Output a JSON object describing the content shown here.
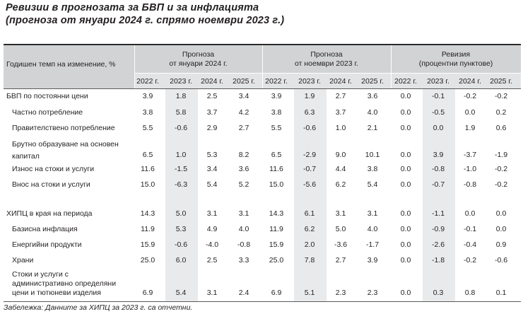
{
  "title": {
    "line1": "Ревизии в прогнозата за БВП и за инфлацията",
    "line2": "(прогноза от януари 2024 г. спрямо ноември 2023 г.)"
  },
  "header": {
    "row_label": "Годишен темп на изменение, %",
    "sections": [
      {
        "line1": "Прогноза",
        "line2": "от януари 2024 г."
      },
      {
        "line1": "Прогноза",
        "line2": "от ноември 2023 г."
      },
      {
        "line1": "Ревизия",
        "line2": "(процентни пунктове)"
      }
    ],
    "years": [
      "2022 г.",
      "2023 г.",
      "2024 г.",
      "2025 г.",
      "2022 г.",
      "2023 г.",
      "2024 г.",
      "2025 г.",
      "2022 г.",
      "2023 г.",
      "2024 г.",
      "2025 г."
    ]
  },
  "rows": [
    {
      "lines": [
        "БВП по постоянни цени"
      ],
      "values": [
        "3.9",
        "1.8",
        "2.5",
        "3.4",
        "3.9",
        "1.9",
        "2.7",
        "3.6",
        "0.0",
        "-0.1",
        "-0.2",
        "-0.2"
      ]
    },
    {
      "lines": [
        "Частно потребление"
      ],
      "values": [
        "3.8",
        "5.8",
        "3.7",
        "4.2",
        "3.8",
        "6.3",
        "3.7",
        "4.0",
        "0.0",
        "-0.5",
        "0.0",
        "0.2"
      ]
    },
    {
      "lines": [
        "Правителствено потребление"
      ],
      "values": [
        "5.5",
        "-0.6",
        "2.9",
        "2.7",
        "5.5",
        "-0.6",
        "1.0",
        "2.1",
        "0.0",
        "0.0",
        "1.9",
        "0.6"
      ]
    },
    {
      "lines": [
        "Брутно образуване на основен",
        "капитал"
      ],
      "values": [
        "6.5",
        "1.0",
        "5.3",
        "8.2",
        "6.5",
        "-2.9",
        "9.0",
        "10.1",
        "0.0",
        "3.9",
        "-3.7",
        "-1.9"
      ]
    },
    {
      "lines": [
        "Износ на стоки и услуги"
      ],
      "values": [
        "11.6",
        "-1.5",
        "3.4",
        "3.6",
        "11.6",
        "-0.7",
        "4.4",
        "3.8",
        "0.0",
        "-0.8",
        "-1.0",
        "-0.2"
      ]
    },
    {
      "lines": [
        "Внос на стоки и услуги"
      ],
      "values": [
        "15.0",
        "-6.3",
        "5.4",
        "5.2",
        "15.0",
        "-5.6",
        "6.2",
        "5.4",
        "0.0",
        "-0.7",
        "-0.8",
        "-0.2"
      ]
    },
    {
      "lines": [
        "ХИПЦ в края на периода"
      ],
      "values": [
        "14.3",
        "5.0",
        "3.1",
        "3.1",
        "14.3",
        "6.1",
        "3.1",
        "3.1",
        "0.0",
        "-1.1",
        "0.0",
        "0.0"
      ]
    },
    {
      "lines": [
        "Базисна инфлация"
      ],
      "values": [
        "11.9",
        "5.3",
        "4.9",
        "4.0",
        "11.9",
        "6.2",
        "5.0",
        "4.0",
        "0.0",
        "-0.9",
        "-0.1",
        "0.0"
      ]
    },
    {
      "lines": [
        "Енергийни продукти"
      ],
      "values": [
        "15.9",
        "-0.6",
        "-4.0",
        "-0.8",
        "15.9",
        "2.0",
        "-3.6",
        "-1.7",
        "0.0",
        "-2.6",
        "-0.4",
        "0.9"
      ]
    },
    {
      "lines": [
        "Храни"
      ],
      "values": [
        "25.0",
        "6.0",
        "2.5",
        "3.3",
        "25.0",
        "7.8",
        "2.7",
        "3.9",
        "0.0",
        "-1.8",
        "-0.2",
        "-0.6"
      ]
    },
    {
      "lines": [
        "Стоки и услуги с",
        "административно определяни",
        "цени и тютюневи изделия"
      ],
      "values": [
        "6.9",
        "5.4",
        "3.1",
        "2.4",
        "6.9",
        "5.1",
        "2.3",
        "2.3",
        "0.0",
        "0.3",
        "0.8",
        "0.1"
      ]
    }
  ],
  "footnote": "Забележка: Данните за ХИПЦ за 2023 г. са отчетни.",
  "colors": {
    "header": "#d2d3d5",
    "shade": "#e9eaeb",
    "text": "#231f20"
  }
}
